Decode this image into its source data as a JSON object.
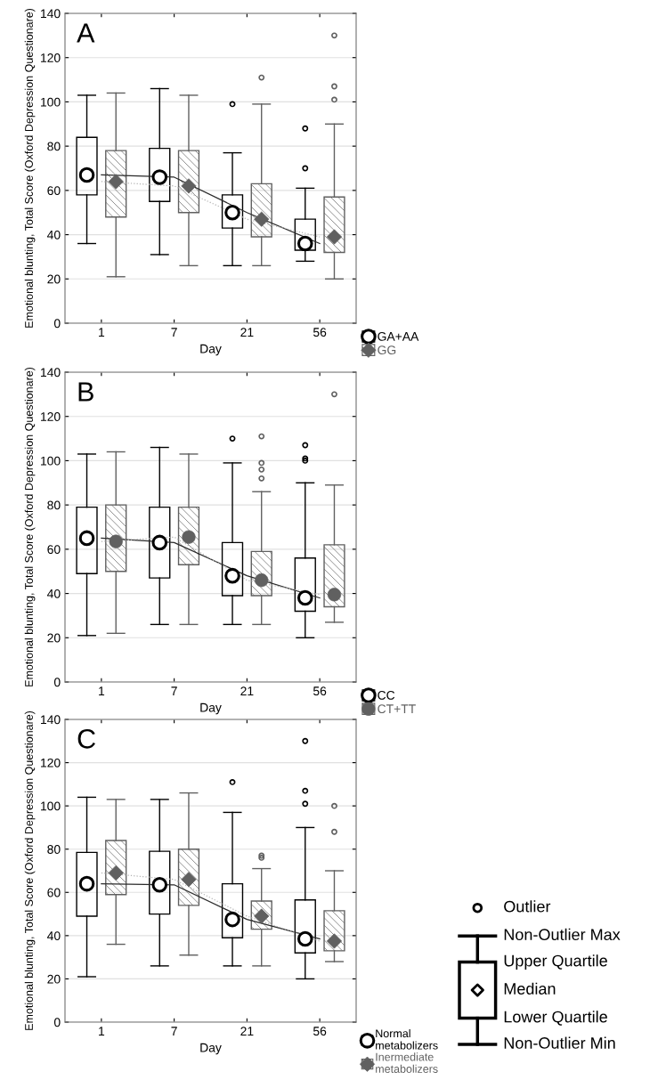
{
  "chart_data": [
    {
      "type": "box",
      "annotations": [
        "A"
      ],
      "xlabel": "Day",
      "ylabel": "Emotional blunting, Total Score (Oxford Depression Questionare)",
      "categories": [
        "1",
        "7",
        "21",
        "56"
      ],
      "ylim": [
        0,
        140
      ],
      "yticks": [
        0,
        20,
        40,
        60,
        80,
        100,
        120,
        140
      ],
      "grid": "y",
      "legend": "bottom right",
      "series": [
        {
          "type": "line",
          "color": "#2b2b2b",
          "line_style": "solid",
          "values": [
            67,
            66,
            50,
            36
          ]
        },
        {
          "type": "line",
          "color": "#b3b3b3",
          "line_style": "dotted",
          "values": [
            64,
            62,
            47,
            39
          ]
        },
        {
          "name": "GA+AA",
          "color": "#000000",
          "marker": "circle",
          "boxes": [
            {
              "low": 36,
              "q1": 58,
              "median": 67,
              "q3": 84,
              "high": 103
            },
            {
              "low": 31,
              "q1": 55,
              "median": 66,
              "q3": 79,
              "high": 106
            },
            {
              "low": 26,
              "q1": 43,
              "median": 50,
              "q3": 58,
              "high": 77,
              "outliers": [
                99
              ]
            },
            {
              "low": 28,
              "q1": 33,
              "median": 36,
              "q3": 47,
              "high": 61,
              "outliers": [
                70,
                88
              ]
            }
          ]
        },
        {
          "name": "GG",
          "color": "#606060",
          "marker": "diamond",
          "boxes": [
            {
              "low": 21,
              "q1": 48,
              "median": 64,
              "q3": 78,
              "high": 104
            },
            {
              "low": 26,
              "q1": 50,
              "median": 62,
              "q3": 78,
              "high": 103
            },
            {
              "low": 26,
              "q1": 39,
              "median": 47,
              "q3": 63,
              "high": 99,
              "outliers": [
                111
              ]
            },
            {
              "low": 20,
              "q1": 32,
              "median": 39,
              "q3": 57,
              "high": 90,
              "outliers": [
                101,
                107,
                130
              ]
            }
          ]
        }
      ]
    },
    {
      "type": "box",
      "annotations": [
        "B"
      ],
      "xlabel": "Day",
      "ylabel": "Emotional blunting, Total Score (Oxford Depression Questionare)",
      "categories": [
        "1",
        "7",
        "21",
        "56"
      ],
      "ylim": [
        0,
        140
      ],
      "yticks": [
        0,
        20,
        40,
        60,
        80,
        100,
        120,
        140
      ],
      "grid": "y",
      "legend": "bottom right",
      "series": [
        {
          "type": "line",
          "color": "#2b2b2b",
          "line_style": "solid",
          "values": [
            65,
            63,
            48,
            38
          ]
        },
        {
          "type": "line",
          "color": "#b3b3b3",
          "line_style": "dotted",
          "values": [
            63.5,
            65.5,
            46,
            39.5
          ]
        },
        {
          "name": "CC",
          "color": "#000000",
          "marker": "circle",
          "boxes": [
            {
              "low": 21,
              "q1": 49,
              "median": 65,
              "q3": 79,
              "high": 103
            },
            {
              "low": 26,
              "q1": 47,
              "median": 63,
              "q3": 79,
              "high": 106
            },
            {
              "low": 26,
              "q1": 39,
              "median": 48,
              "q3": 63,
              "high": 99,
              "outliers": [
                110
              ]
            },
            {
              "low": 20,
              "q1": 32,
              "median": 38,
              "q3": 56,
              "high": 90,
              "outliers": [
                100,
                101,
                107
              ]
            }
          ]
        },
        {
          "name": "CT+TT",
          "color": "#606060",
          "marker": "filled circle",
          "boxes": [
            {
              "low": 22,
              "q1": 50,
              "median": 63.5,
              "q3": 80,
              "high": 104
            },
            {
              "low": 26,
              "q1": 53,
              "median": 65.5,
              "q3": 79,
              "high": 103
            },
            {
              "low": 26,
              "q1": 39,
              "median": 46,
              "q3": 59,
              "high": 86,
              "outliers": [
                92,
                96,
                99,
                111
              ]
            },
            {
              "low": 27,
              "q1": 34,
              "median": 39.5,
              "q3": 62,
              "high": 89,
              "outliers": [
                130
              ]
            }
          ]
        }
      ]
    },
    {
      "type": "box",
      "annotations": [
        "C"
      ],
      "xlabel": "Day",
      "ylabel": "Emotional blunting, Total Score (Oxford Depression Questionare)",
      "categories": [
        "1",
        "7",
        "21",
        "56"
      ],
      "ylim": [
        0,
        140
      ],
      "yticks": [
        0,
        20,
        40,
        60,
        80,
        100,
        120,
        140
      ],
      "grid": "y",
      "legend": "bottom right",
      "series": [
        {
          "type": "line",
          "color": "#2b2b2b",
          "line_style": "solid",
          "values": [
            64,
            63.5,
            47.5,
            38.5
          ]
        },
        {
          "type": "line",
          "color": "#b3b3b3",
          "line_style": "dotted",
          "values": [
            69,
            66,
            49,
            37.5
          ]
        },
        {
          "name": "Normal metabolizers",
          "color": "#000000",
          "marker": "circle",
          "boxes": [
            {
              "low": 21,
              "q1": 49,
              "median": 64,
              "q3": 78.5,
              "high": 104
            },
            {
              "low": 26,
              "q1": 50,
              "median": 63.5,
              "q3": 79,
              "high": 103
            },
            {
              "low": 26,
              "q1": 39,
              "median": 47.5,
              "q3": 64,
              "high": 97,
              "outliers": [
                111
              ]
            },
            {
              "low": 20,
              "q1": 32,
              "median": 38.5,
              "q3": 56.5,
              "high": 90,
              "outliers": [
                101,
                107,
                130
              ]
            }
          ]
        },
        {
          "name": "Inermediate metabolizers",
          "color": "#606060",
          "marker": "diamond",
          "boxes": [
            {
              "low": 36,
              "q1": 59,
              "median": 69,
              "q3": 84,
              "high": 103
            },
            {
              "low": 31,
              "q1": 54,
              "median": 66,
              "q3": 80,
              "high": 106
            },
            {
              "low": 26,
              "q1": 43,
              "median": 49,
              "q3": 56,
              "high": 71,
              "outliers": [
                76,
                77
              ]
            },
            {
              "low": 28,
              "q1": 33,
              "median": 37.5,
              "q3": 51.5,
              "high": 70,
              "outliers": [
                88,
                100
              ]
            }
          ]
        }
      ]
    },
    {
      "type": "other",
      "annotations": [
        "Outlier",
        "Non-Outlier Max",
        "Upper Quartile",
        "Median",
        "Lower Quartile",
        "Non-Outlier Min"
      ]
    }
  ]
}
